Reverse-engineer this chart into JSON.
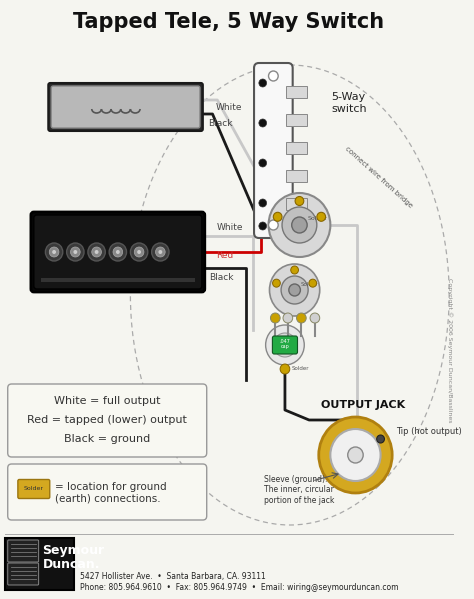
{
  "title": "Tapped Tele, 5 Way Switch",
  "title_fontsize": 15,
  "title_fontweight": "bold",
  "bg_color": "#f5f5f0",
  "footer_line1": "5427 Hollister Ave.  •  Santa Barbara, CA. 93111",
  "footer_line2": "Phone: 805.964.9610  •  Fax: 805.964.9749  •  Email: wiring@seymourduncan.com",
  "legend_lines": [
    "White = full output",
    "Red = tapped (lower) output",
    "Black = ground"
  ],
  "solder_text": "= location for ground\n(earth) connections.",
  "switch_label": "5-Way\nswitch",
  "output_jack_label": "OUTPUT JACK",
  "sleeve_label": "Sleeve (ground).\nThe inner, circular\nportion of the jack",
  "tip_label": "Tip (hot output)",
  "copyright": "Copyright © 2006 Seymour Duncan/Basslines",
  "wire_white": "#c8c8c8",
  "wire_black": "#1a1a1a",
  "wire_red": "#cc0000",
  "wire_green": "#00aa00",
  "solder_color": "#b8860b",
  "pickup_neck_color": "#cccccc",
  "pickup_bridge_color": "#111111"
}
